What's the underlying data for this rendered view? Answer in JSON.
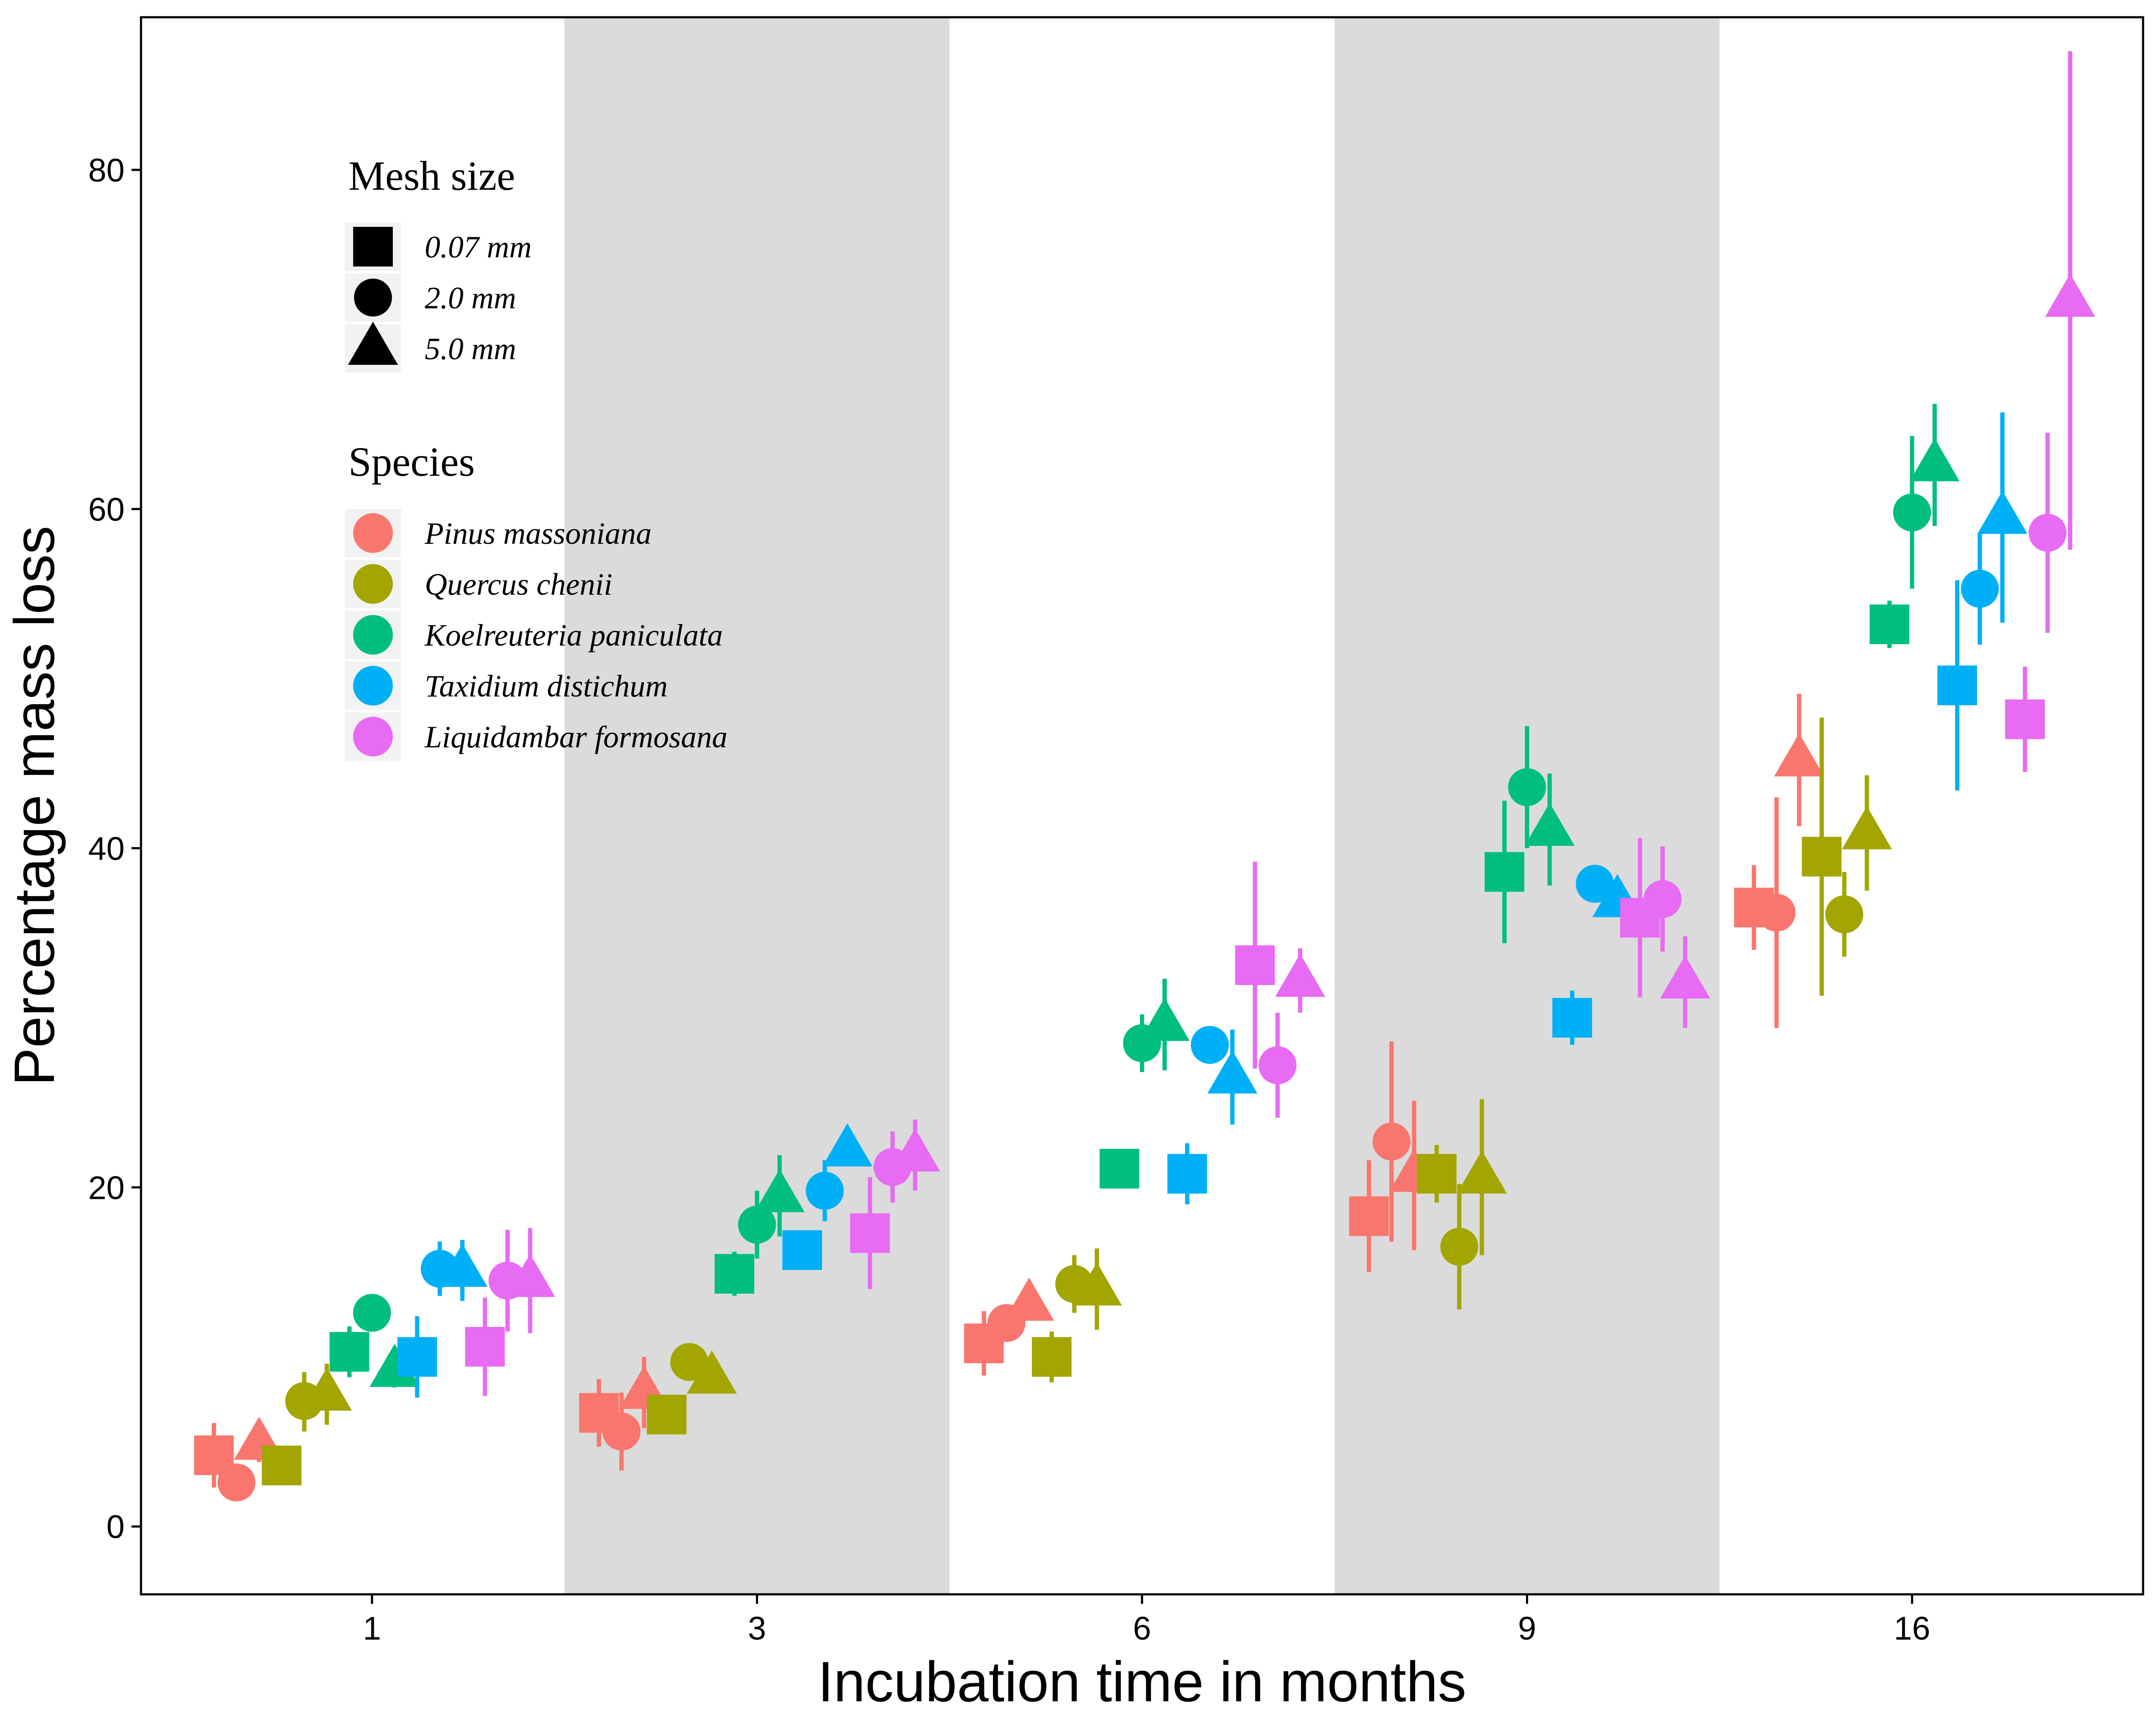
{
  "chart_data": {
    "type": "scatter",
    "title": "",
    "xlabel": "Incubation time in months",
    "ylabel": "Percentage mass loss",
    "categories": [
      "1",
      "3",
      "6",
      "9",
      "16"
    ],
    "shaded_categories": [
      "3",
      "9"
    ],
    "shaded_color": "#dbdbdb",
    "ylim": [
      -4,
      89
    ],
    "yticks": [
      0,
      20,
      40,
      60,
      80
    ],
    "grid": false,
    "legend_placement": "top-left",
    "legends": {
      "mesh": {
        "title": "Mesh size",
        "items": [
          {
            "name": "0.07 mm",
            "shape": "square"
          },
          {
            "name": "2.0 mm",
            "shape": "circle"
          },
          {
            "name": "5.0 mm",
            "shape": "triangle"
          }
        ]
      },
      "species": {
        "title": "Species",
        "items": [
          {
            "name": "Pinus massoniana",
            "color": "#f8766d"
          },
          {
            "name": "Quercus chenii",
            "color": "#a3a500"
          },
          {
            "name": "Koelreuteria paniculata",
            "color": "#00bf7d"
          },
          {
            "name": "Taxidium distichum",
            "color": "#00b0f6"
          },
          {
            "name": "Liquidambar formosana",
            "color": "#e76bf3"
          }
        ]
      }
    },
    "points": [
      {
        "category": "1",
        "species": "Pinus massoniana",
        "mesh": "0.07 mm",
        "y": 4.2,
        "low": 2.3,
        "high": 6.1
      },
      {
        "category": "1",
        "species": "Pinus massoniana",
        "mesh": "2.0 mm",
        "y": 2.6,
        "low": 2.0,
        "high": 3.2
      },
      {
        "category": "1",
        "species": "Pinus massoniana",
        "mesh": "5.0 mm",
        "y": 4.9,
        "low": 3.8,
        "high": 6.0
      },
      {
        "category": "1",
        "species": "Quercus chenii",
        "mesh": "0.07 mm",
        "y": 3.6,
        "low": 3.0,
        "high": 4.2
      },
      {
        "category": "1",
        "species": "Quercus chenii",
        "mesh": "2.0 mm",
        "y": 7.4,
        "low": 5.6,
        "high": 9.1
      },
      {
        "category": "1",
        "species": "Quercus chenii",
        "mesh": "5.0 mm",
        "y": 7.8,
        "low": 6.0,
        "high": 9.6
      },
      {
        "category": "1",
        "species": "Koelreuteria paniculata",
        "mesh": "0.07 mm",
        "y": 10.3,
        "low": 8.8,
        "high": 11.8
      },
      {
        "category": "1",
        "species": "Koelreuteria paniculata",
        "mesh": "2.0 mm",
        "y": 12.6,
        "low": 12.0,
        "high": 13.2
      },
      {
        "category": "1",
        "species": "Koelreuteria paniculata",
        "mesh": "5.0 mm",
        "y": 9.2,
        "low": 8.2,
        "high": 10.2
      },
      {
        "category": "1",
        "species": "Taxidium distichum",
        "mesh": "0.07 mm",
        "y": 10.0,
        "low": 7.6,
        "high": 12.4
      },
      {
        "category": "1",
        "species": "Taxidium distichum",
        "mesh": "2.0 mm",
        "y": 15.2,
        "low": 13.6,
        "high": 16.8
      },
      {
        "category": "1",
        "species": "Taxidium distichum",
        "mesh": "5.0 mm",
        "y": 15.1,
        "low": 13.3,
        "high": 16.9
      },
      {
        "category": "1",
        "species": "Liquidambar formosana",
        "mesh": "0.07 mm",
        "y": 10.6,
        "low": 7.7,
        "high": 13.5
      },
      {
        "category": "1",
        "species": "Liquidambar formosana",
        "mesh": "2.0 mm",
        "y": 14.5,
        "low": 11.5,
        "high": 17.5
      },
      {
        "category": "1",
        "species": "Liquidambar formosana",
        "mesh": "5.0 mm",
        "y": 14.5,
        "low": 11.4,
        "high": 17.6
      },
      {
        "category": "3",
        "species": "Pinus massoniana",
        "mesh": "0.07 mm",
        "y": 6.7,
        "low": 4.7,
        "high": 8.7
      },
      {
        "category": "3",
        "species": "Pinus massoniana",
        "mesh": "2.0 mm",
        "y": 5.6,
        "low": 3.3,
        "high": 7.9
      },
      {
        "category": "3",
        "species": "Pinus massoniana",
        "mesh": "5.0 mm",
        "y": 7.9,
        "low": 5.8,
        "high": 10.0
      },
      {
        "category": "3",
        "species": "Quercus chenii",
        "mesh": "0.07 mm",
        "y": 6.6,
        "low": 6.0,
        "high": 7.2
      },
      {
        "category": "3",
        "species": "Quercus chenii",
        "mesh": "2.0 mm",
        "y": 9.7,
        "low": 9.1,
        "high": 10.3
      },
      {
        "category": "3",
        "species": "Quercus chenii",
        "mesh": "5.0 mm",
        "y": 8.8,
        "low": 8.2,
        "high": 9.4
      },
      {
        "category": "3",
        "species": "Koelreuteria paniculata",
        "mesh": "0.07 mm",
        "y": 14.9,
        "low": 13.6,
        "high": 16.2
      },
      {
        "category": "3",
        "species": "Koelreuteria paniculata",
        "mesh": "2.0 mm",
        "y": 17.8,
        "low": 15.8,
        "high": 19.8
      },
      {
        "category": "3",
        "species": "Koelreuteria paniculata",
        "mesh": "5.0 mm",
        "y": 19.5,
        "low": 17.1,
        "high": 21.9
      },
      {
        "category": "3",
        "species": "Taxidium distichum",
        "mesh": "0.07 mm",
        "y": 16.3,
        "low": 15.7,
        "high": 16.9
      },
      {
        "category": "3",
        "species": "Taxidium distichum",
        "mesh": "2.0 mm",
        "y": 19.8,
        "low": 18.0,
        "high": 21.6
      },
      {
        "category": "3",
        "species": "Taxidium distichum",
        "mesh": "5.0 mm",
        "y": 22.2,
        "low": 21.6,
        "high": 22.8
      },
      {
        "category": "3",
        "species": "Liquidambar formosana",
        "mesh": "0.07 mm",
        "y": 17.3,
        "low": 14.0,
        "high": 20.6
      },
      {
        "category": "3",
        "species": "Liquidambar formosana",
        "mesh": "2.0 mm",
        "y": 21.2,
        "low": 19.1,
        "high": 23.3
      },
      {
        "category": "3",
        "species": "Liquidambar formosana",
        "mesh": "5.0 mm",
        "y": 21.9,
        "low": 19.8,
        "high": 24.0
      },
      {
        "category": "6",
        "species": "Pinus massoniana",
        "mesh": "0.07 mm",
        "y": 10.8,
        "low": 8.9,
        "high": 12.7
      },
      {
        "category": "6",
        "species": "Pinus massoniana",
        "mesh": "2.0 mm",
        "y": 12.0,
        "low": 11.2,
        "high": 12.8
      },
      {
        "category": "6",
        "species": "Pinus massoniana",
        "mesh": "5.0 mm",
        "y": 13.1,
        "low": 12.2,
        "high": 14.0
      },
      {
        "category": "6",
        "species": "Quercus chenii",
        "mesh": "0.07 mm",
        "y": 10.0,
        "low": 8.5,
        "high": 11.5
      },
      {
        "category": "6",
        "species": "Quercus chenii",
        "mesh": "2.0 mm",
        "y": 14.3,
        "low": 12.6,
        "high": 16.0
      },
      {
        "category": "6",
        "species": "Quercus chenii",
        "mesh": "5.0 mm",
        "y": 14.0,
        "low": 11.6,
        "high": 16.4
      },
      {
        "category": "6",
        "species": "Koelreuteria paniculata",
        "mesh": "0.07 mm",
        "y": 21.1,
        "low": 20.5,
        "high": 21.7
      },
      {
        "category": "6",
        "species": "Koelreuteria paniculata",
        "mesh": "2.0 mm",
        "y": 28.5,
        "low": 26.8,
        "high": 30.2
      },
      {
        "category": "6",
        "species": "Koelreuteria paniculata",
        "mesh": "5.0 mm",
        "y": 29.6,
        "low": 26.9,
        "high": 32.3
      },
      {
        "category": "6",
        "species": "Taxidium distichum",
        "mesh": "0.07 mm",
        "y": 20.8,
        "low": 19.0,
        "high": 22.6
      },
      {
        "category": "6",
        "species": "Taxidium distichum",
        "mesh": "2.0 mm",
        "y": 28.4,
        "low": 27.8,
        "high": 29.0
      },
      {
        "category": "6",
        "species": "Taxidium distichum",
        "mesh": "5.0 mm",
        "y": 26.5,
        "low": 23.7,
        "high": 29.3
      },
      {
        "category": "6",
        "species": "Liquidambar formosana",
        "mesh": "0.07 mm",
        "y": 33.1,
        "low": 27.0,
        "high": 39.2
      },
      {
        "category": "6",
        "species": "Liquidambar formosana",
        "mesh": "2.0 mm",
        "y": 27.2,
        "low": 24.1,
        "high": 30.3
      },
      {
        "category": "6",
        "species": "Liquidambar formosana",
        "mesh": "5.0 mm",
        "y": 32.2,
        "low": 30.3,
        "high": 34.1
      },
      {
        "category": "9",
        "species": "Pinus massoniana",
        "mesh": "0.07 mm",
        "y": 18.3,
        "low": 15.0,
        "high": 21.6
      },
      {
        "category": "9",
        "species": "Pinus massoniana",
        "mesh": "2.0 mm",
        "y": 22.7,
        "low": 16.8,
        "high": 28.6
      },
      {
        "category": "9",
        "species": "Pinus massoniana",
        "mesh": "5.0 mm",
        "y": 20.7,
        "low": 16.3,
        "high": 25.1
      },
      {
        "category": "9",
        "species": "Quercus chenii",
        "mesh": "0.07 mm",
        "y": 20.8,
        "low": 19.1,
        "high": 22.5
      },
      {
        "category": "9",
        "species": "Quercus chenii",
        "mesh": "2.0 mm",
        "y": 16.5,
        "low": 12.8,
        "high": 20.2
      },
      {
        "category": "9",
        "species": "Quercus chenii",
        "mesh": "5.0 mm",
        "y": 20.6,
        "low": 16.0,
        "high": 25.2
      },
      {
        "category": "9",
        "species": "Koelreuteria paniculata",
        "mesh": "0.07 mm",
        "y": 38.6,
        "low": 34.4,
        "high": 42.8
      },
      {
        "category": "9",
        "species": "Koelreuteria paniculata",
        "mesh": "2.0 mm",
        "y": 43.6,
        "low": 40.0,
        "high": 47.2
      },
      {
        "category": "9",
        "species": "Koelreuteria paniculata",
        "mesh": "5.0 mm",
        "y": 41.1,
        "low": 37.8,
        "high": 44.4
      },
      {
        "category": "9",
        "species": "Taxidium distichum",
        "mesh": "0.07 mm",
        "y": 30.0,
        "low": 28.4,
        "high": 31.6
      },
      {
        "category": "9",
        "species": "Taxidium distichum",
        "mesh": "2.0 mm",
        "y": 37.9,
        "low": 37.1,
        "high": 38.7
      },
      {
        "category": "9",
        "species": "Taxidium distichum",
        "mesh": "5.0 mm",
        "y": 36.9,
        "low": 36.0,
        "high": 37.8
      },
      {
        "category": "9",
        "species": "Liquidambar formosana",
        "mesh": "0.07 mm",
        "y": 35.9,
        "low": 31.2,
        "high": 40.6
      },
      {
        "category": "9",
        "species": "Liquidambar formosana",
        "mesh": "2.0 mm",
        "y": 37.0,
        "low": 33.9,
        "high": 40.1
      },
      {
        "category": "9",
        "species": "Liquidambar formosana",
        "mesh": "5.0 mm",
        "y": 32.1,
        "low": 29.4,
        "high": 34.8
      },
      {
        "category": "16",
        "species": "Pinus massoniana",
        "mesh": "0.07 mm",
        "y": 36.5,
        "low": 34.0,
        "high": 39.0
      },
      {
        "category": "16",
        "species": "Pinus massoniana",
        "mesh": "2.0 mm",
        "y": 36.2,
        "low": 29.4,
        "high": 43.0
      },
      {
        "category": "16",
        "species": "Pinus massoniana",
        "mesh": "5.0 mm",
        "y": 45.2,
        "low": 41.3,
        "high": 49.1
      },
      {
        "category": "16",
        "species": "Quercus chenii",
        "mesh": "0.07 mm",
        "y": 39.5,
        "low": 31.3,
        "high": 47.7
      },
      {
        "category": "16",
        "species": "Quercus chenii",
        "mesh": "2.0 mm",
        "y": 36.1,
        "low": 33.6,
        "high": 38.6
      },
      {
        "category": "16",
        "species": "Quercus chenii",
        "mesh": "5.0 mm",
        "y": 40.9,
        "low": 37.5,
        "high": 44.3
      },
      {
        "category": "16",
        "species": "Koelreuteria paniculata",
        "mesh": "0.07 mm",
        "y": 53.2,
        "low": 51.8,
        "high": 54.6
      },
      {
        "category": "16",
        "species": "Koelreuteria paniculata",
        "mesh": "2.0 mm",
        "y": 59.8,
        "low": 55.3,
        "high": 64.3
      },
      {
        "category": "16",
        "species": "Koelreuteria paniculata",
        "mesh": "5.0 mm",
        "y": 62.6,
        "low": 59.0,
        "high": 66.2
      },
      {
        "category": "16",
        "species": "Taxidium distichum",
        "mesh": "0.07 mm",
        "y": 49.6,
        "low": 43.4,
        "high": 55.8
      },
      {
        "category": "16",
        "species": "Taxidium distichum",
        "mesh": "2.0 mm",
        "y": 55.3,
        "low": 52.0,
        "high": 58.6
      },
      {
        "category": "16",
        "species": "Taxidium distichum",
        "mesh": "5.0 mm",
        "y": 59.5,
        "low": 53.3,
        "high": 65.7
      },
      {
        "category": "16",
        "species": "Liquidambar formosana",
        "mesh": "0.07 mm",
        "y": 47.6,
        "low": 44.5,
        "high": 50.7
      },
      {
        "category": "16",
        "species": "Liquidambar formosana",
        "mesh": "2.0 mm",
        "y": 58.6,
        "low": 52.7,
        "high": 64.5
      },
      {
        "category": "16",
        "species": "Liquidambar formosana",
        "mesh": "5.0 mm",
        "y": 72.3,
        "low": 57.6,
        "high": 87.0
      }
    ]
  }
}
